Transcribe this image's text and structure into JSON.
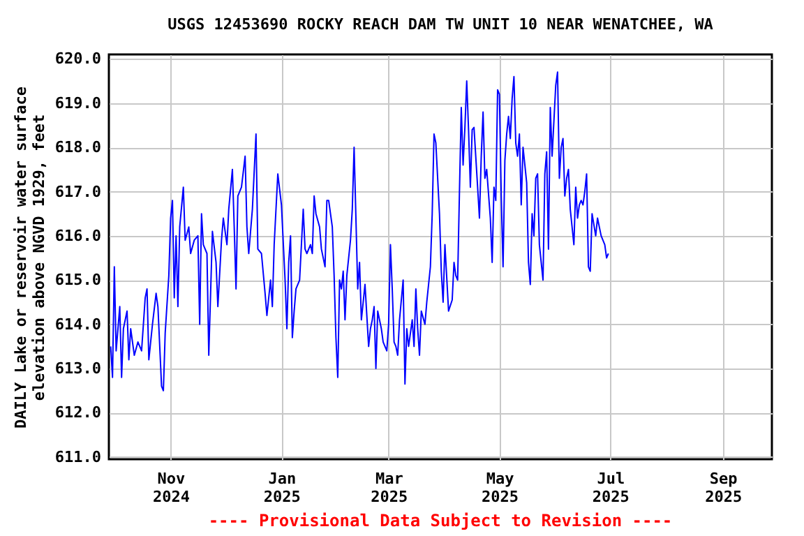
{
  "chart_data": {
    "type": "line",
    "title": "USGS 12453690 ROCKY REACH DAM TW UNIT 10 NEAR WENATCHEE, WA",
    "ylabel": "DAILY Lake or reservoir water surface\nelevation above NGVD 1929, feet",
    "annotations": [
      "---- Provisional Data Subject to Revision ----"
    ],
    "x": [
      "2024-09-29",
      "2024-09-30",
      "2024-10-01",
      "2024-10-02",
      "2024-10-04",
      "2024-10-05",
      "2024-10-06",
      "2024-10-08",
      "2024-10-09",
      "2024-10-10",
      "2024-10-12",
      "2024-10-14",
      "2024-10-16",
      "2024-10-18",
      "2024-10-19",
      "2024-10-20",
      "2024-10-22",
      "2024-10-24",
      "2024-10-25",
      "2024-10-27",
      "2024-10-28",
      "2024-10-29",
      "2024-10-31",
      "2024-11-01",
      "2024-11-02",
      "2024-11-03",
      "2024-11-04",
      "2024-11-05",
      "2024-11-06",
      "2024-11-08",
      "2024-11-09",
      "2024-11-11",
      "2024-11-12",
      "2024-11-14",
      "2024-11-16",
      "2024-11-17",
      "2024-11-18",
      "2024-11-19",
      "2024-11-21",
      "2024-11-22",
      "2024-11-24",
      "2024-11-26",
      "2024-11-27",
      "2024-11-29",
      "2024-11-30",
      "2024-12-02",
      "2024-12-03",
      "2024-12-05",
      "2024-12-06",
      "2024-12-07",
      "2024-12-08",
      "2024-12-10",
      "2024-12-12",
      "2024-12-13",
      "2024-12-14",
      "2024-12-16",
      "2024-12-18",
      "2024-12-19",
      "2024-12-21",
      "2024-12-23",
      "2024-12-24",
      "2024-12-26",
      "2024-12-27",
      "2024-12-28",
      "2024-12-30",
      "2025-01-01",
      "2025-01-03",
      "2025-01-04",
      "2025-01-05",
      "2025-01-06",
      "2025-01-07",
      "2025-01-08",
      "2025-01-09",
      "2025-01-11",
      "2025-01-12",
      "2025-01-13",
      "2025-01-14",
      "2025-01-15",
      "2025-01-17",
      "2025-01-18",
      "2025-01-19",
      "2025-01-20",
      "2025-01-22",
      "2025-01-23",
      "2025-01-25",
      "2025-01-26",
      "2025-01-27",
      "2025-01-29",
      "2025-01-30",
      "2025-01-31",
      "2025-02-01",
      "2025-02-02",
      "2025-02-03",
      "2025-02-04",
      "2025-02-05",
      "2025-02-06",
      "2025-02-08",
      "2025-02-09",
      "2025-02-10",
      "2025-02-11",
      "2025-02-12",
      "2025-02-13",
      "2025-02-14",
      "2025-02-16",
      "2025-02-18",
      "2025-02-19",
      "2025-02-20",
      "2025-02-21",
      "2025-02-22",
      "2025-02-23",
      "2025-02-25",
      "2025-02-26",
      "2025-02-28",
      "2025-03-01",
      "2025-03-02",
      "2025-03-03",
      "2025-03-04",
      "2025-03-05",
      "2025-03-06",
      "2025-03-07",
      "2025-03-09",
      "2025-03-10",
      "2025-03-11",
      "2025-03-12",
      "2025-03-14",
      "2025-03-15",
      "2025-03-16",
      "2025-03-17",
      "2025-03-18",
      "2025-03-19",
      "2025-03-21",
      "2025-03-22",
      "2025-03-24",
      "2025-03-25",
      "2025-03-26",
      "2025-03-27",
      "2025-03-29",
      "2025-03-30",
      "2025-03-31",
      "2025-04-01",
      "2025-04-03",
      "2025-04-05",
      "2025-04-06",
      "2025-04-07",
      "2025-04-08",
      "2025-04-09",
      "2025-04-10",
      "2025-04-11",
      "2025-04-12",
      "2025-04-13",
      "2025-04-14",
      "2025-04-15",
      "2025-04-16",
      "2025-04-17",
      "2025-04-19",
      "2025-04-20",
      "2025-04-21",
      "2025-04-22",
      "2025-04-23",
      "2025-04-24",
      "2025-04-26",
      "2025-04-27",
      "2025-04-28",
      "2025-04-29",
      "2025-04-30",
      "2025-05-01",
      "2025-05-02",
      "2025-05-03",
      "2025-05-04",
      "2025-05-05",
      "2025-05-06",
      "2025-05-07",
      "2025-05-08",
      "2025-05-09",
      "2025-05-10",
      "2025-05-11",
      "2025-05-12",
      "2025-05-13",
      "2025-05-14",
      "2025-05-15",
      "2025-05-16",
      "2025-05-17",
      "2025-05-18",
      "2025-05-19",
      "2025-05-20",
      "2025-05-21",
      "2025-05-22",
      "2025-05-23",
      "2025-05-25",
      "2025-05-26",
      "2025-05-27",
      "2025-05-28",
      "2025-05-29",
      "2025-05-30",
      "2025-05-31",
      "2025-06-01",
      "2025-06-02",
      "2025-06-03",
      "2025-06-04",
      "2025-06-05",
      "2025-06-06",
      "2025-06-07",
      "2025-06-08",
      "2025-06-09",
      "2025-06-10",
      "2025-06-11",
      "2025-06-12",
      "2025-06-13",
      "2025-06-14",
      "2025-06-15",
      "2025-06-16",
      "2025-06-17",
      "2025-06-18",
      "2025-06-19",
      "2025-06-20",
      "2025-06-21",
      "2025-06-23",
      "2025-06-24",
      "2025-06-25",
      "2025-06-26",
      "2025-06-28",
      "2025-06-29",
      "2025-06-30"
    ],
    "series": [
      {
        "color": "#0000ff",
        "values": [
          613.5,
          612.8,
          615.3,
          613.4,
          614.4,
          612.8,
          613.9,
          614.3,
          613.2,
          613.9,
          613.3,
          613.6,
          613.4,
          614.6,
          614.8,
          613.2,
          614.0,
          614.7,
          614.4,
          612.6,
          612.5,
          613.8,
          615.1,
          616.4,
          616.8,
          614.6,
          616.0,
          614.4,
          616.2,
          617.1,
          615.9,
          616.2,
          615.6,
          615.9,
          616.0,
          614.0,
          616.5,
          615.8,
          615.6,
          613.3,
          616.1,
          615.4,
          614.4,
          615.9,
          616.4,
          615.8,
          616.6,
          617.5,
          616.2,
          614.8,
          616.9,
          617.1,
          617.8,
          616.2,
          615.6,
          616.6,
          618.3,
          615.7,
          615.6,
          614.7,
          614.2,
          615.0,
          614.4,
          615.8,
          617.4,
          616.7,
          615.0,
          613.9,
          615.4,
          616.0,
          613.7,
          614.3,
          614.8,
          615.0,
          615.8,
          616.6,
          615.7,
          615.6,
          615.8,
          615.6,
          616.9,
          616.5,
          616.2,
          615.7,
          615.3,
          616.8,
          616.8,
          616.2,
          615.1,
          613.7,
          612.8,
          615.0,
          614.8,
          615.2,
          614.1,
          615.1,
          615.9,
          616.6,
          618.0,
          616.4,
          614.8,
          615.4,
          614.1,
          614.9,
          613.5,
          613.9,
          614.1,
          614.4,
          613.0,
          614.3,
          613.9,
          613.6,
          613.4,
          614.0,
          615.8,
          614.8,
          613.6,
          613.5,
          613.3,
          614.1,
          615.0,
          612.65,
          613.9,
          613.5,
          614.1,
          613.5,
          614.8,
          613.9,
          613.3,
          614.3,
          614.0,
          614.5,
          615.3,
          616.5,
          618.3,
          618.1,
          616.5,
          615.2,
          614.5,
          615.8,
          614.3,
          614.55,
          615.4,
          615.1,
          615.0,
          617.0,
          618.9,
          617.6,
          618.45,
          619.5,
          618.4,
          617.1,
          618.4,
          618.45,
          617.1,
          616.4,
          617.8,
          618.8,
          617.3,
          617.5,
          616.4,
          615.4,
          617.1,
          616.8,
          619.3,
          619.2,
          616.9,
          615.3,
          617.7,
          618.3,
          618.7,
          618.2,
          619.1,
          619.6,
          618.1,
          617.8,
          618.3,
          616.7,
          618.0,
          617.6,
          617.2,
          615.4,
          614.9,
          616.5,
          616.0,
          617.3,
          617.4,
          615.8,
          615.0,
          617.4,
          617.9,
          615.7,
          618.9,
          617.8,
          618.6,
          619.4,
          619.7,
          617.3,
          618.0,
          618.2,
          616.9,
          617.3,
          617.5,
          616.6,
          616.2,
          615.8,
          617.1,
          616.4,
          616.7,
          616.8,
          616.7,
          617.0,
          617.4,
          615.3,
          615.2,
          616.5,
          616.0,
          616.4,
          616.2,
          616.0,
          615.8,
          615.5,
          615.6
        ]
      }
    ],
    "xlim": [
      "2024-09-28",
      "2025-09-28"
    ],
    "xticks": [
      {
        "value": "2024-11-01",
        "label": "Nov\n2024"
      },
      {
        "value": "2025-01-01",
        "label": "Jan\n2025"
      },
      {
        "value": "2025-03-01",
        "label": "Mar\n2025"
      },
      {
        "value": "2025-05-01",
        "label": "May\n2025"
      },
      {
        "value": "2025-07-01",
        "label": "Jul\n2025"
      },
      {
        "value": "2025-09-01",
        "label": "Sep\n2025"
      }
    ],
    "ylim": [
      610.95,
      620.1
    ],
    "yticks": [
      {
        "value": 611,
        "label": "611.0"
      },
      {
        "value": 612,
        "label": "612.0"
      },
      {
        "value": 613,
        "label": "613.0"
      },
      {
        "value": 614,
        "label": "614.0"
      },
      {
        "value": 615,
        "label": "615.0"
      },
      {
        "value": 616,
        "label": "616.0"
      },
      {
        "value": 617,
        "label": "617.0"
      },
      {
        "value": 618,
        "label": "618.0"
      },
      {
        "value": 619,
        "label": "619.0"
      },
      {
        "value": 620,
        "label": "620.0"
      }
    ],
    "grid": true,
    "legend": false,
    "marker": "none",
    "line_style": "solid"
  }
}
